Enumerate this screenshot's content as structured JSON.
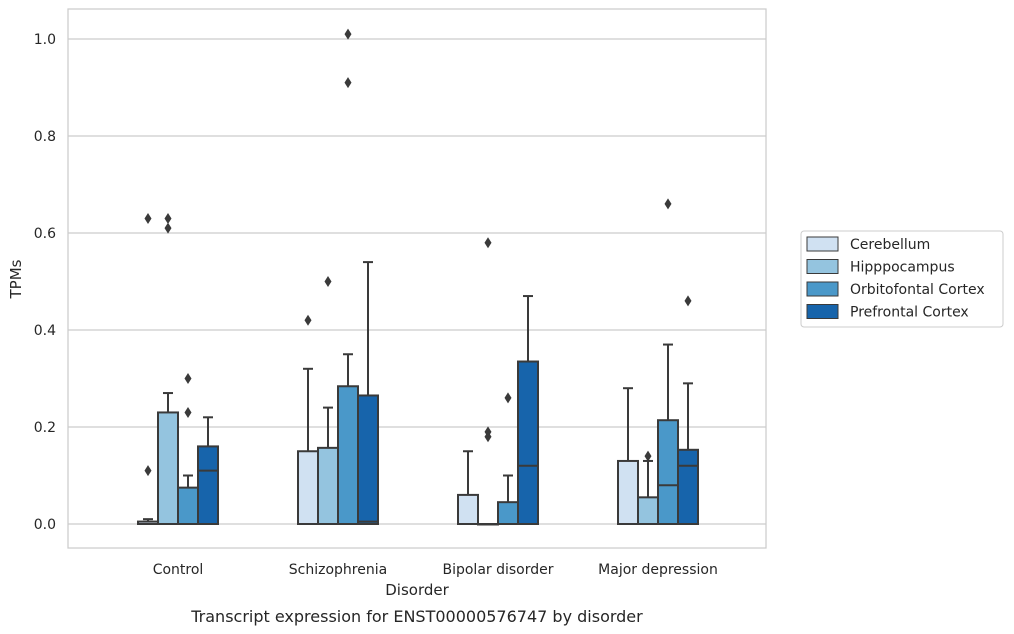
{
  "chart_data": {
    "type": "box",
    "caption": "Transcript expression for ENST00000576747 by disorder",
    "xlabel": "Disorder",
    "ylabel": "TPMs",
    "ylim": [
      -0.05,
      1.06
    ],
    "yticks": [
      "0.0",
      "0.2",
      "0.4",
      "0.6",
      "0.8",
      "1.0"
    ],
    "grid": "horizontal",
    "legend_position": "right",
    "categories": [
      "Control",
      "Schizophrenia",
      "Bipolar disorder",
      "Major depression"
    ],
    "series": [
      {
        "name": "Cerebellum",
        "color": "#d0e1f2",
        "boxes": [
          {
            "q1": 0.0,
            "median": 0.0,
            "q3": 0.005,
            "whisker_low": 0.0,
            "whisker_high": 0.01,
            "outliers": [
              0.11,
              0.63
            ]
          },
          {
            "q1": 0.0,
            "median": 0.0,
            "q3": 0.15,
            "whisker_low": 0.0,
            "whisker_high": 0.32,
            "outliers": [
              0.42
            ]
          },
          {
            "q1": 0.0,
            "median": 0.0,
            "q3": 0.06,
            "whisker_low": 0.0,
            "whisker_high": 0.15,
            "outliers": []
          },
          {
            "q1": 0.0,
            "median": 0.0,
            "q3": 0.13,
            "whisker_low": 0.0,
            "whisker_high": 0.28,
            "outliers": []
          }
        ]
      },
      {
        "name": "Hipppocampus",
        "color": "#94c4df",
        "boxes": [
          {
            "q1": 0.0,
            "median": 0.0,
            "q3": 0.23,
            "whisker_low": 0.0,
            "whisker_high": 0.27,
            "outliers": [
              0.61,
              0.63
            ]
          },
          {
            "q1": 0.0,
            "median": 0.0,
            "q3": 0.157,
            "whisker_low": 0.0,
            "whisker_high": 0.24,
            "outliers": [
              0.5
            ]
          },
          {
            "q1": 0.0,
            "median": 0.0,
            "q3": 0.0,
            "whisker_low": 0.0,
            "whisker_high": 0.0,
            "outliers": [
              0.18,
              0.19,
              0.58
            ]
          },
          {
            "q1": 0.0,
            "median": 0.0,
            "q3": 0.055,
            "whisker_low": 0.0,
            "whisker_high": 0.13,
            "outliers": [
              0.14
            ]
          }
        ]
      },
      {
        "name": "Orbitofontal Cortex",
        "color": "#4a98c9",
        "boxes": [
          {
            "q1": 0.0,
            "median": 0.0,
            "q3": 0.075,
            "whisker_low": 0.0,
            "whisker_high": 0.1,
            "outliers": [
              0.23,
              0.3
            ]
          },
          {
            "q1": 0.0,
            "median": 0.0,
            "q3": 0.284,
            "whisker_low": 0.0,
            "whisker_high": 0.35,
            "outliers": [
              0.91,
              1.01
            ]
          },
          {
            "q1": 0.0,
            "median": 0.0,
            "q3": 0.045,
            "whisker_low": 0.0,
            "whisker_high": 0.1,
            "outliers": [
              0.26
            ]
          },
          {
            "q1": 0.0,
            "median": 0.08,
            "q3": 0.214,
            "whisker_low": 0.0,
            "whisker_high": 0.37,
            "outliers": [
              0.66
            ]
          }
        ]
      },
      {
        "name": "Prefrontal Cortex",
        "color": "#1764ab",
        "boxes": [
          {
            "q1": 0.0,
            "median": 0.11,
            "q3": 0.16,
            "whisker_low": 0.0,
            "whisker_high": 0.22,
            "outliers": []
          },
          {
            "q1": 0.0,
            "median": 0.005,
            "q3": 0.265,
            "whisker_low": 0.0,
            "whisker_high": 0.54,
            "outliers": []
          },
          {
            "q1": 0.0,
            "median": 0.12,
            "q3": 0.335,
            "whisker_low": 0.0,
            "whisker_high": 0.47,
            "outliers": []
          },
          {
            "q1": 0.0,
            "median": 0.12,
            "q3": 0.153,
            "whisker_low": 0.0,
            "whisker_high": 0.29,
            "outliers": [
              0.46
            ]
          }
        ]
      }
    ]
  }
}
